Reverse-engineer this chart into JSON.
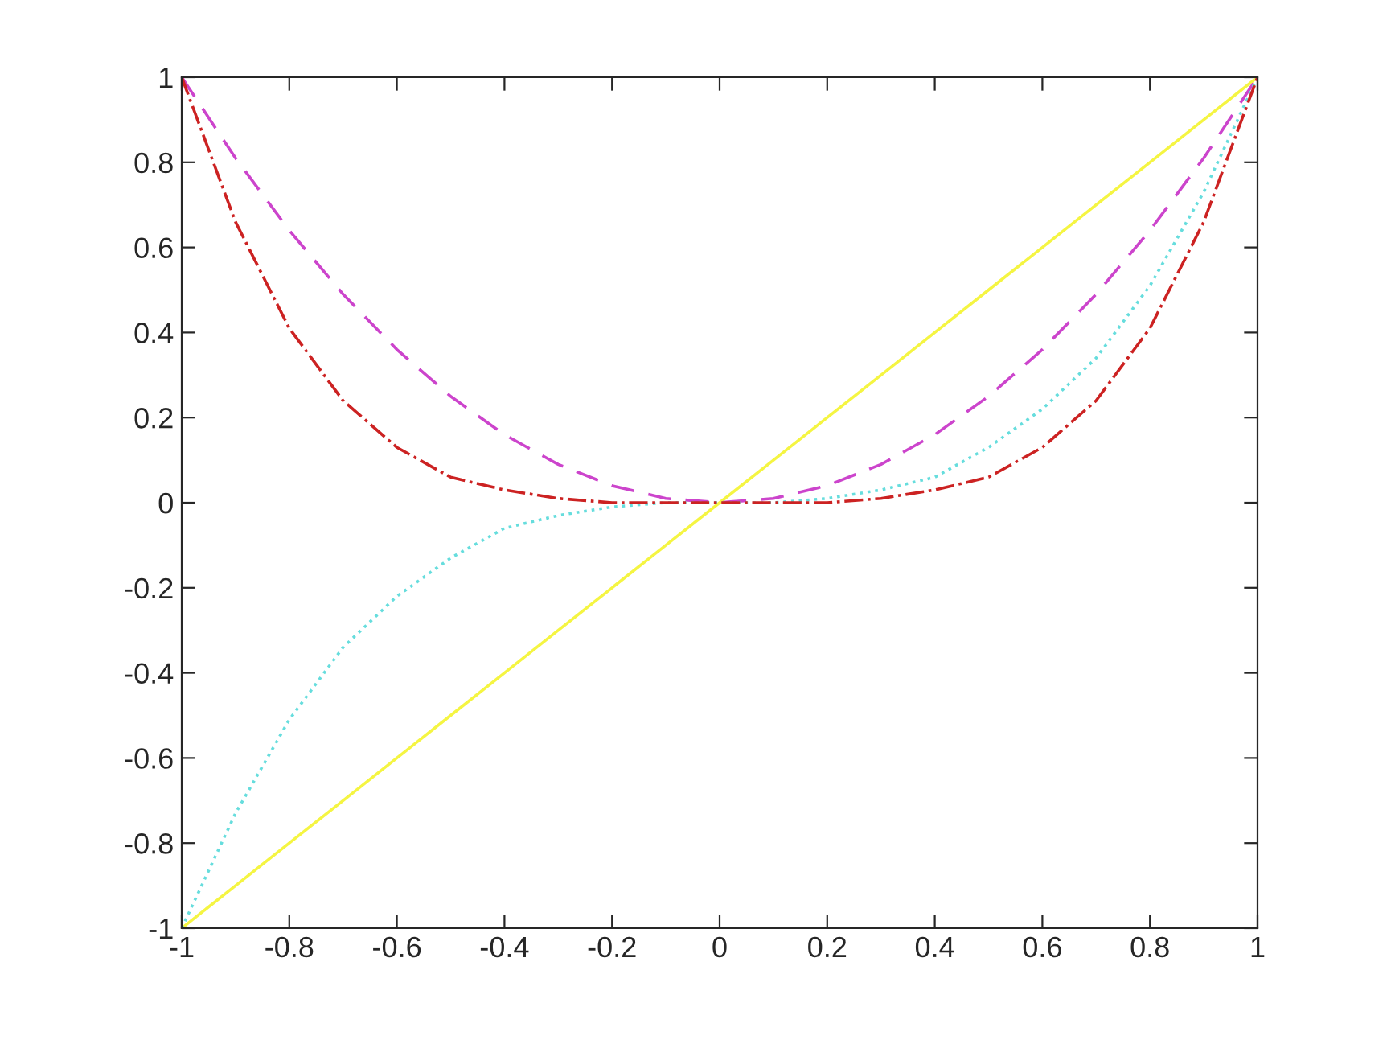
{
  "chart_data": {
    "type": "line",
    "x": [
      -1,
      -0.9,
      -0.8,
      -0.7,
      -0.6,
      -0.5,
      -0.4,
      -0.3,
      -0.2,
      -0.1,
      0,
      0.1,
      0.2,
      0.3,
      0.4,
      0.5,
      0.6,
      0.7,
      0.8,
      0.9,
      1
    ],
    "series": [
      {
        "color": "#f5f542",
        "line_style": "solid",
        "values": [
          -1,
          -0.9,
          -0.8,
          -0.7,
          -0.6,
          -0.5,
          -0.4,
          -0.3,
          -0.2,
          -0.1,
          0,
          0.1,
          0.2,
          0.3,
          0.4,
          0.5,
          0.6,
          0.7,
          0.8,
          0.9,
          1
        ]
      },
      {
        "color": "#cc44cc",
        "line_style": "dashed",
        "values": [
          1,
          0.81,
          0.64,
          0.49,
          0.36,
          0.25,
          0.16,
          0.09,
          0.04,
          0.01,
          0,
          0.01,
          0.04,
          0.09,
          0.16,
          0.25,
          0.36,
          0.49,
          0.64,
          0.81,
          1
        ]
      },
      {
        "color": "#66dddd",
        "line_style": "dotted",
        "values": [
          -1,
          -0.73,
          -0.51,
          -0.34,
          -0.22,
          -0.13,
          -0.06,
          -0.03,
          -0.01,
          0,
          0,
          0,
          0.01,
          0.03,
          0.06,
          0.13,
          0.22,
          0.34,
          0.51,
          0.73,
          1
        ]
      },
      {
        "color": "#cc2222",
        "line_style": "dashdot",
        "values": [
          1,
          0.66,
          0.41,
          0.24,
          0.13,
          0.06,
          0.03,
          0.01,
          0,
          0,
          0,
          0,
          0,
          0.01,
          0.03,
          0.06,
          0.13,
          0.24,
          0.41,
          0.66,
          1
        ]
      }
    ],
    "xlim": [
      -1,
      1
    ],
    "ylim": [
      -1,
      1
    ],
    "xticks": [
      -1,
      -0.8,
      -0.6,
      -0.4,
      -0.2,
      0,
      0.2,
      0.4,
      0.6,
      0.8,
      1
    ],
    "yticks": [
      -1,
      -0.8,
      -0.6,
      -0.4,
      -0.2,
      0,
      0.2,
      0.4,
      0.6,
      0.8,
      1
    ],
    "grid": false,
    "marker": "none"
  }
}
